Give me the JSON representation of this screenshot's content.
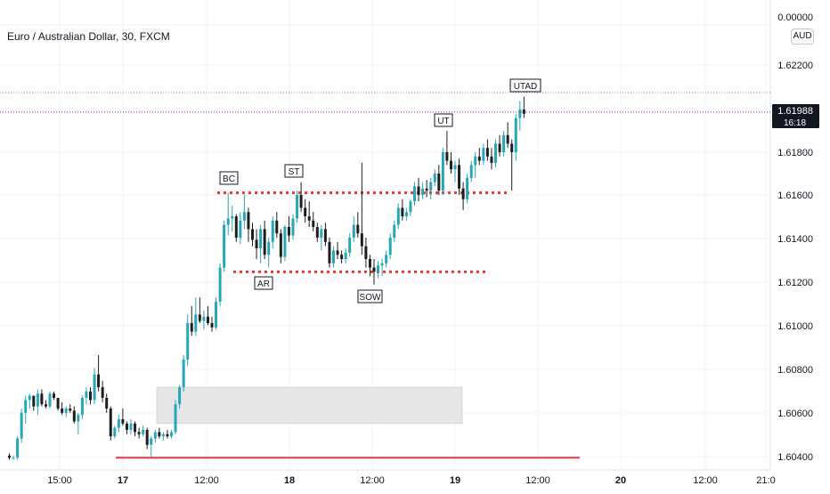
{
  "header": {
    "title": "Euro / Australian Dollar, 30, FXCM",
    "currency": "AUD"
  },
  "price_axis": {
    "top_label": "0.00000",
    "ticks": [
      "1.62200",
      "1.61800",
      "1.61600",
      "1.61400",
      "1.61200",
      "1.61000",
      "1.60800",
      "1.60600",
      "1.60400"
    ],
    "last_price": "1.61988",
    "countdown": "16:18"
  },
  "time_axis": {
    "ticks": [
      "15:00",
      "17",
      "12:00",
      "18",
      "12:00",
      "19",
      "12:00",
      "20",
      "12:00",
      "21:0"
    ]
  },
  "annotations": [
    "BC",
    "ST",
    "AR",
    "SOW",
    "UT",
    "UTAD"
  ],
  "colors": {
    "up": "#26a6b7",
    "down": "#1e1e1e",
    "resistance": "#e53935",
    "support_line": "#f23645",
    "zone": "#e6e6e8",
    "price_line": "#9c27b0"
  },
  "chart_data": {
    "type": "candlestick",
    "title": "Euro / Australian Dollar, 30, FXCM",
    "y_axis": {
      "range": [
        1.6035,
        1.6235
      ]
    },
    "levels": {
      "resistance": 1.6161,
      "support": 1.6124,
      "bottom": 1.6037,
      "current": 1.61988
    },
    "zone": {
      "low": 1.6053,
      "high": 1.607
    },
    "candles": [
      [
        1.6038,
        1.6039,
        1.6036,
        1.6037
      ],
      [
        1.6037,
        1.6038,
        1.6036,
        1.6037
      ],
      [
        1.6037,
        1.6047,
        1.6036,
        1.6046
      ],
      [
        1.6046,
        1.606,
        1.6044,
        1.6058
      ],
      [
        1.6058,
        1.6066,
        1.6053,
        1.6064
      ],
      [
        1.6064,
        1.6067,
        1.606,
        1.6066
      ],
      [
        1.6066,
        1.6066,
        1.6059,
        1.6061
      ],
      [
        1.6061,
        1.6069,
        1.6057,
        1.6067
      ],
      [
        1.6067,
        1.6069,
        1.6061,
        1.6062
      ],
      [
        1.6062,
        1.6064,
        1.606,
        1.6061
      ],
      [
        1.6061,
        1.6068,
        1.606,
        1.6067
      ],
      [
        1.6067,
        1.6068,
        1.6064,
        1.6065
      ],
      [
        1.6065,
        1.6065,
        1.6059,
        1.606
      ],
      [
        1.606,
        1.6063,
        1.6057,
        1.6058
      ],
      [
        1.6058,
        1.6061,
        1.6056,
        1.606
      ],
      [
        1.606,
        1.6062,
        1.6058,
        1.6059
      ],
      [
        1.6059,
        1.6061,
        1.6053,
        1.6054
      ],
      [
        1.6054,
        1.6058,
        1.6048,
        1.6057
      ],
      [
        1.6057,
        1.6066,
        1.6055,
        1.6065
      ],
      [
        1.6065,
        1.607,
        1.6062,
        1.6068
      ],
      [
        1.6068,
        1.607,
        1.6062,
        1.6064
      ],
      [
        1.6064,
        1.6079,
        1.6062,
        1.6076
      ],
      [
        1.6076,
        1.6085,
        1.6068,
        1.607
      ],
      [
        1.607,
        1.6073,
        1.6063,
        1.6065
      ],
      [
        1.6065,
        1.6067,
        1.6058,
        1.606
      ],
      [
        1.606,
        1.6061,
        1.6045,
        1.6047
      ],
      [
        1.6047,
        1.6052,
        1.6046,
        1.6051
      ],
      [
        1.6051,
        1.6057,
        1.6049,
        1.6055
      ],
      [
        1.6055,
        1.606,
        1.6052,
        1.6053
      ],
      [
        1.6053,
        1.6054,
        1.6048,
        1.605
      ],
      [
        1.605,
        1.6055,
        1.6048,
        1.6053
      ],
      [
        1.6053,
        1.6054,
        1.6047,
        1.6049
      ],
      [
        1.6049,
        1.6051,
        1.6046,
        1.6048
      ],
      [
        1.6048,
        1.6052,
        1.6047,
        1.605
      ],
      [
        1.605,
        1.6051,
        1.6041,
        1.6043
      ],
      [
        1.6043,
        1.6047,
        1.6037,
        1.6046
      ],
      [
        1.6046,
        1.605,
        1.6044,
        1.6049
      ],
      [
        1.6049,
        1.6051,
        1.6046,
        1.6047
      ],
      [
        1.6047,
        1.6049,
        1.6045,
        1.6048
      ],
      [
        1.6048,
        1.605,
        1.6046,
        1.6047
      ],
      [
        1.6047,
        1.605,
        1.6046,
        1.6049
      ],
      [
        1.6049,
        1.6064,
        1.6048,
        1.6062
      ],
      [
        1.6062,
        1.6071,
        1.606,
        1.607
      ],
      [
        1.607,
        1.6085,
        1.6068,
        1.6083
      ],
      [
        1.6083,
        1.6104,
        1.608,
        1.61
      ],
      [
        1.61,
        1.6108,
        1.6094,
        1.6096
      ],
      [
        1.6096,
        1.6112,
        1.6094,
        1.6104
      ],
      [
        1.6104,
        1.6112,
        1.61,
        1.6101
      ],
      [
        1.6101,
        1.6106,
        1.6097,
        1.6103
      ],
      [
        1.6103,
        1.6108,
        1.6099,
        1.61
      ],
      [
        1.61,
        1.6103,
        1.6096,
        1.6098
      ],
      [
        1.6098,
        1.6112,
        1.6097,
        1.611
      ],
      [
        1.611,
        1.6128,
        1.6108,
        1.6126
      ],
      [
        1.6126,
        1.6148,
        1.6124,
        1.6146
      ],
      [
        1.6146,
        1.6161,
        1.6141,
        1.6149
      ],
      [
        1.6149,
        1.6155,
        1.6143,
        1.615
      ],
      [
        1.615,
        1.6151,
        1.6138,
        1.614
      ],
      [
        1.614,
        1.6152,
        1.6137,
        1.6148
      ],
      [
        1.6148,
        1.616,
        1.6144,
        1.6152
      ],
      [
        1.6152,
        1.6154,
        1.6138,
        1.6144
      ],
      [
        1.6144,
        1.6147,
        1.6136,
        1.6139
      ],
      [
        1.6139,
        1.6144,
        1.613,
        1.6135
      ],
      [
        1.6135,
        1.6146,
        1.6128,
        1.6144
      ],
      [
        1.6144,
        1.6148,
        1.613,
        1.6132
      ],
      [
        1.6132,
        1.614,
        1.6126,
        1.6138
      ],
      [
        1.6138,
        1.615,
        1.6135,
        1.6148
      ],
      [
        1.6148,
        1.6152,
        1.614,
        1.6142
      ],
      [
        1.6142,
        1.6144,
        1.6128,
        1.6131
      ],
      [
        1.6131,
        1.6146,
        1.6129,
        1.6145
      ],
      [
        1.6145,
        1.615,
        1.6138,
        1.6141
      ],
      [
        1.6141,
        1.6151,
        1.6139,
        1.6149
      ],
      [
        1.6149,
        1.6162,
        1.6147,
        1.616
      ],
      [
        1.616,
        1.6166,
        1.6152,
        1.6154
      ],
      [
        1.6154,
        1.6158,
        1.6147,
        1.615
      ],
      [
        1.615,
        1.6157,
        1.6145,
        1.6148
      ],
      [
        1.6148,
        1.6152,
        1.6143,
        1.6145
      ],
      [
        1.6145,
        1.6147,
        1.6138,
        1.614
      ],
      [
        1.614,
        1.6146,
        1.6134,
        1.6144
      ],
      [
        1.6144,
        1.6147,
        1.6136,
        1.6138
      ],
      [
        1.6138,
        1.614,
        1.6126,
        1.6128
      ],
      [
        1.6128,
        1.6136,
        1.6126,
        1.6134
      ],
      [
        1.6134,
        1.6138,
        1.613,
        1.6132
      ],
      [
        1.6132,
        1.6134,
        1.6128,
        1.613
      ],
      [
        1.613,
        1.6135,
        1.6128,
        1.6133
      ],
      [
        1.6133,
        1.6142,
        1.6131,
        1.614
      ],
      [
        1.614,
        1.615,
        1.6138,
        1.6146
      ],
      [
        1.6146,
        1.6152,
        1.614,
        1.6142
      ],
      [
        1.6142,
        1.6175,
        1.6132,
        1.6136
      ],
      [
        1.6136,
        1.614,
        1.6126,
        1.613
      ],
      [
        1.613,
        1.6132,
        1.6122,
        1.6126
      ],
      [
        1.6126,
        1.613,
        1.6118,
        1.6124
      ],
      [
        1.6124,
        1.6129,
        1.6121,
        1.6127
      ],
      [
        1.6127,
        1.613,
        1.6122,
        1.6128
      ],
      [
        1.6128,
        1.6134,
        1.6126,
        1.6132
      ],
      [
        1.6132,
        1.6142,
        1.613,
        1.614
      ],
      [
        1.614,
        1.6148,
        1.6138,
        1.6146
      ],
      [
        1.6146,
        1.6156,
        1.6144,
        1.6154
      ],
      [
        1.6154,
        1.6158,
        1.6148,
        1.615
      ],
      [
        1.615,
        1.6154,
        1.6148,
        1.6152
      ],
      [
        1.6152,
        1.6158,
        1.615,
        1.6157
      ],
      [
        1.6157,
        1.6166,
        1.6155,
        1.6164
      ],
      [
        1.6164,
        1.6168,
        1.6157,
        1.616
      ],
      [
        1.616,
        1.6166,
        1.6158,
        1.6163
      ],
      [
        1.6163,
        1.6167,
        1.6159,
        1.6162
      ],
      [
        1.6162,
        1.6168,
        1.6158,
        1.6166
      ],
      [
        1.6166,
        1.6172,
        1.6164,
        1.617
      ],
      [
        1.617,
        1.6174,
        1.616,
        1.6162
      ],
      [
        1.6162,
        1.6182,
        1.616,
        1.618
      ],
      [
        1.618,
        1.619,
        1.6174,
        1.6176
      ],
      [
        1.6176,
        1.618,
        1.617,
        1.6172
      ],
      [
        1.6172,
        1.6176,
        1.6166,
        1.6174
      ],
      [
        1.6174,
        1.6177,
        1.616,
        1.6163
      ],
      [
        1.6163,
        1.6166,
        1.6153,
        1.6158
      ],
      [
        1.6158,
        1.617,
        1.6156,
        1.6168
      ],
      [
        1.6168,
        1.6176,
        1.6166,
        1.6174
      ],
      [
        1.6174,
        1.618,
        1.6168,
        1.6178
      ],
      [
        1.6178,
        1.6182,
        1.6174,
        1.6176
      ],
      [
        1.6176,
        1.6184,
        1.6174,
        1.6182
      ],
      [
        1.6182,
        1.6186,
        1.6176,
        1.6178
      ],
      [
        1.6178,
        1.6182,
        1.6172,
        1.6175
      ],
      [
        1.6175,
        1.6186,
        1.6173,
        1.6184
      ],
      [
        1.6184,
        1.6188,
        1.6178,
        1.618
      ],
      [
        1.618,
        1.619,
        1.6178,
        1.6188
      ],
      [
        1.6188,
        1.6194,
        1.6182,
        1.6184
      ],
      [
        1.6184,
        1.6186,
        1.6162,
        1.618
      ],
      [
        1.618,
        1.6198,
        1.6176,
        1.6196
      ],
      [
        1.6196,
        1.6204,
        1.619,
        1.62
      ],
      [
        1.62,
        1.6206,
        1.6196,
        1.6198
      ]
    ]
  }
}
